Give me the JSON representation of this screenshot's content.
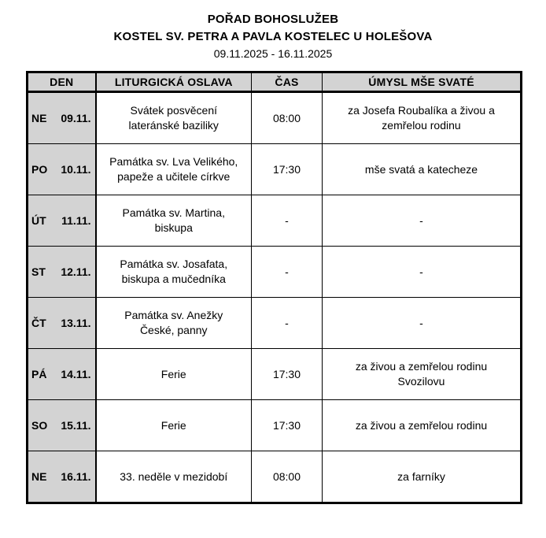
{
  "page": {
    "title_line1": "POŘAD BOHOSLUŽEB",
    "title_line2": "KOSTEL SV. PETRA A PAVLA KOSTELEC U HOLEŠOVA",
    "date_range": "09.11.2025 - 16.11.2025"
  },
  "colors": {
    "header_bg": "#d3d3d3",
    "day_column_bg": "#d3d3d3",
    "border": "#000000",
    "page_bg": "#ffffff",
    "text": "#000000"
  },
  "table": {
    "headers": [
      "DEN",
      "LITURGICKÁ OSLAVA",
      "ČAS",
      "ÚMYSL MŠE SVATÉ"
    ],
    "rows": [
      {
        "day": "NE",
        "date": "09.11.",
        "celebration": "Svátek posvěcení\nlateránské baziliky",
        "time": "08:00",
        "intention": "za Josefa Roubalíka a živou a\nzemřelou rodinu"
      },
      {
        "day": "PO",
        "date": "10.11.",
        "celebration": "Památka sv. Lva Velikého,\npapeže a učitele církve",
        "time": "17:30",
        "intention": "mše svatá a katecheze"
      },
      {
        "day": "ÚT",
        "date": "11.11.",
        "celebration": "Památka sv. Martina,\nbiskupa",
        "time": "-",
        "intention": "-"
      },
      {
        "day": "ST",
        "date": "12.11.",
        "celebration": "Památka sv. Josafata,\nbiskupa a mučedníka",
        "time": "-",
        "intention": "-"
      },
      {
        "day": "ČT",
        "date": "13.11.",
        "celebration": "Památka sv. Anežky\nČeské, panny",
        "time": "-",
        "intention": "-"
      },
      {
        "day": "PÁ",
        "date": "14.11.",
        "celebration": "Ferie",
        "time": "17:30",
        "intention": "za živou a zemřelou rodinu\nSvozilovu"
      },
      {
        "day": "SO",
        "date": "15.11.",
        "celebration": "Ferie",
        "time": "17:30",
        "intention": "za živou a zemřelou rodinu"
      },
      {
        "day": "NE",
        "date": "16.11.",
        "celebration": "33. neděle v mezidobí",
        "time": "08:00",
        "intention": "za farníky"
      }
    ]
  }
}
